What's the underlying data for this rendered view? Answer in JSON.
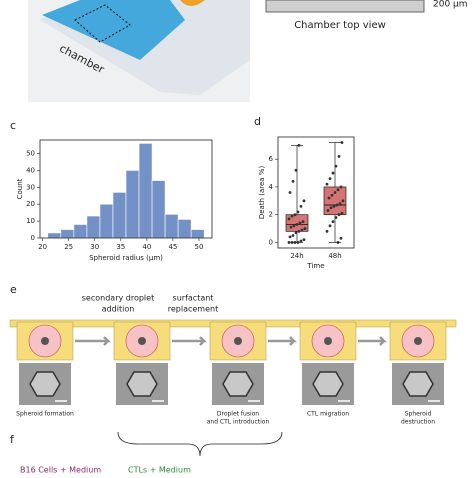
{
  "panel_labels": [
    "c",
    "d",
    "e",
    "f"
  ],
  "photo": {
    "label": "chamber"
  },
  "top_view": {
    "caption": "Chamber top view",
    "scale_bar": "200 μm"
  },
  "chart_data": [
    {
      "type": "histogram",
      "x_label": "Spheroid radius (μm)",
      "y_label": "Count",
      "color": "#7391c6",
      "bins": [
        21,
        23.5,
        26,
        28.5,
        31,
        33.5,
        36,
        38.5,
        41,
        43.5,
        46,
        48.5,
        51
      ],
      "values": [
        3,
        5,
        8,
        13,
        20,
        27,
        40,
        56,
        34,
        14,
        11,
        5
      ],
      "xlim": [
        19.5,
        52.5
      ],
      "xticks": [
        20,
        25,
        30,
        35,
        40,
        45,
        50
      ],
      "ylim": [
        0,
        58
      ],
      "yticks": [
        0,
        10,
        20,
        30,
        40,
        50
      ]
    },
    {
      "type": "box",
      "x_label": "Time",
      "y_label": "Death (area %)",
      "color": "#d47474",
      "categories": [
        "24h",
        "48h"
      ],
      "stats": [
        {
          "min": 0,
          "q1": 0.8,
          "median": 1.3,
          "q3": 2.0,
          "max": 7.0
        },
        {
          "min": 0,
          "q1": 2.0,
          "median": 2.7,
          "q3": 4.0,
          "max": 7.2
        }
      ],
      "points": [
        [
          0,
          0,
          0,
          0,
          0.1,
          0.2,
          0.4,
          0.5,
          0.7,
          0.8,
          0.9,
          1.0,
          1.1,
          1.2,
          1.3,
          1.4,
          1.5,
          1.7,
          1.9,
          2.0,
          2.2,
          2.6,
          3.0,
          3.6,
          4.4,
          5.2,
          7.0
        ],
        [
          0,
          0.3,
          0.8,
          1.2,
          1.5,
          1.8,
          2.0,
          2.1,
          2.3,
          2.5,
          2.6,
          2.7,
          2.8,
          3.0,
          3.2,
          3.4,
          3.6,
          3.8,
          4.0,
          4.2,
          4.6,
          5.0,
          5.5,
          6.2,
          7.2
        ]
      ],
      "ylim": [
        -0.4,
        7.6
      ],
      "yticks": [
        0,
        2,
        4,
        6
      ]
    }
  ],
  "schematic": {
    "arrow_notes": [
      [
        "secondary droplet",
        "addition"
      ],
      [
        "surfactant",
        "replacement"
      ]
    ],
    "steps": [
      [
        "Spheroid formation"
      ],
      [],
      [
        "Droplet fusion",
        "and CTL introduction"
      ],
      [
        "CTL migration"
      ],
      [
        "Spheroid",
        "destruction"
      ]
    ]
  },
  "legend_f": {
    "cells": "B16 Cells + Medium",
    "ctls": "CTLs + Medium"
  }
}
